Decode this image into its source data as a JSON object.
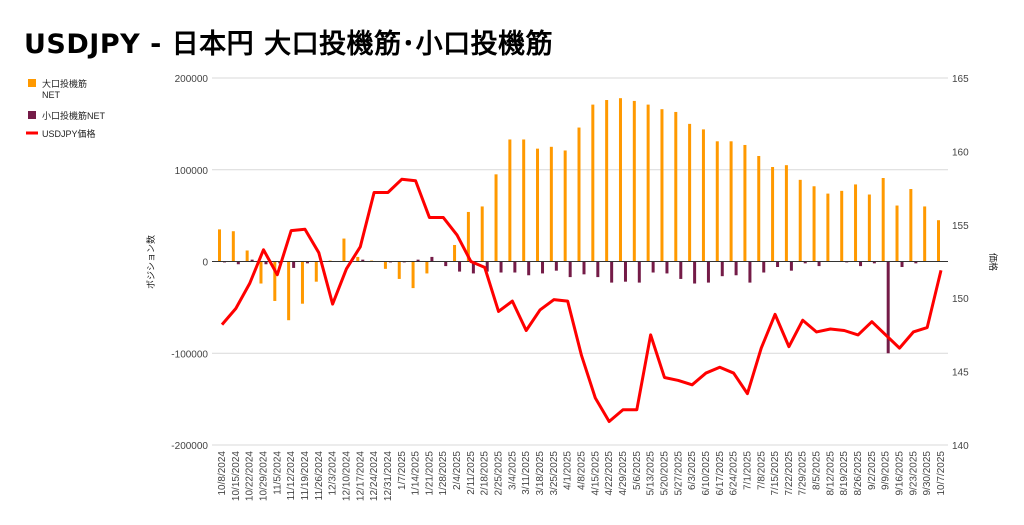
{
  "chart_data": {
    "type": "bar+line",
    "title": "USDJPY - 日本円 大口投機筋･小口投機筋",
    "ylabel_left": "ポジション数",
    "ylabel_right": "価格",
    "ylim_left": [
      -200000,
      200000
    ],
    "ylim_right": [
      140,
      165
    ],
    "left_ticks": [
      "200000",
      "100000",
      "0",
      "-100000",
      "-200000"
    ],
    "left_tick_values": [
      200000,
      100000,
      0,
      -100000,
      -200000
    ],
    "right_ticks": [
      "165",
      "160",
      "155",
      "150",
      "145",
      "140"
    ],
    "right_tick_values": [
      165,
      160,
      155,
      150,
      145,
      140
    ],
    "grid": true,
    "legend_position": "left",
    "categories": [
      "10/8/2024",
      "10/15/2024",
      "10/22/2024",
      "10/29/2024",
      "11/5/2024",
      "11/12/2024",
      "11/19/2024",
      "11/26/2024",
      "12/3/2024",
      "12/10/2024",
      "12/17/2024",
      "12/24/2024",
      "12/31/2024",
      "1/7/2025",
      "1/14/2025",
      "1/21/2025",
      "1/28/2025",
      "2/4/2025",
      "2/11/2025",
      "2/18/2025",
      "2/25/2025",
      "3/4/2025",
      "3/11/2025",
      "3/18/2025",
      "3/25/2025",
      "4/1/2025",
      "4/8/2025",
      "4/15/2025",
      "4/22/2025",
      "4/29/2025",
      "5/6/2025",
      "5/13/2025",
      "5/20/2025",
      "5/27/2025",
      "6/3/2025",
      "6/10/2025",
      "6/17/2025",
      "6/24/2025",
      "7/1/2025",
      "7/8/2025",
      "7/15/2025",
      "7/22/2025",
      "7/29/2025",
      "8/5/2025",
      "8/12/2025",
      "8/19/2025",
      "8/26/2025",
      "9/2/2025",
      "9/9/2025",
      "9/16/2025",
      "9/23/2025",
      "9/30/2025",
      "10/7/2025"
    ],
    "series": [
      {
        "name": "大口投機筋NET",
        "legend_lines": [
          "大口投機筋",
          "NET"
        ],
        "type": "bar",
        "axis": "left",
        "color": "#ff9900",
        "values": [
          35000,
          33000,
          12000,
          -24000,
          -43000,
          -64000,
          -46000,
          -22000,
          1000,
          25000,
          5000,
          1000,
          -8000,
          -19000,
          -29000,
          -13000,
          0,
          18000,
          54000,
          60000,
          95000,
          133000,
          133000,
          123000,
          125000,
          121000,
          146000,
          171000,
          176000,
          178000,
          175000,
          171000,
          166000,
          163000,
          150000,
          144000,
          131000,
          131000,
          127000,
          115000,
          103000,
          105000,
          89000,
          82000,
          74000,
          77000,
          84000,
          73000,
          91000,
          61000,
          79000,
          60000,
          45000
        ]
      },
      {
        "name": "小口投機筋NET",
        "legend_lines": [
          "小口投機筋NET"
        ],
        "type": "bar",
        "axis": "left",
        "color": "#741b47",
        "values": [
          -1000,
          -3000,
          2000,
          -3000,
          -2000,
          -7000,
          -2000,
          0,
          0,
          0,
          2000,
          0,
          -1000,
          -1000,
          2000,
          5000,
          -5000,
          -11000,
          -13000,
          -11000,
          -12000,
          -12000,
          -15000,
          -13000,
          -10000,
          -17000,
          -14000,
          -17000,
          -23000,
          -22000,
          -23000,
          -12000,
          -13000,
          -19000,
          -24000,
          -23000,
          -16000,
          -15000,
          -23000,
          -12000,
          -6000,
          -10000,
          -2000,
          -5000,
          0,
          -1000,
          -5000,
          -2000,
          -100000,
          -6000,
          -2000,
          0,
          0
        ]
      },
      {
        "name": "USDJPY価格",
        "legend_lines": [
          "USDJPY価格"
        ],
        "type": "line",
        "axis": "right",
        "color": "#ff0000",
        "values": [
          148.2,
          149.3,
          151.0,
          153.3,
          151.6,
          154.6,
          154.7,
          153.1,
          149.6,
          152.0,
          153.5,
          157.2,
          157.2,
          158.1,
          158.0,
          155.5,
          155.5,
          154.3,
          152.5,
          152.1,
          149.1,
          149.8,
          147.8,
          149.2,
          149.9,
          149.8,
          146.1,
          143.2,
          141.6,
          142.4,
          142.4,
          147.5,
          144.6,
          144.4,
          144.1,
          144.9,
          145.3,
          144.9,
          143.5,
          146.6,
          148.9,
          146.7,
          148.5,
          147.7,
          147.9,
          147.8,
          147.5,
          148.4,
          147.5,
          146.6,
          147.7,
          148.0,
          151.9
        ]
      }
    ]
  }
}
